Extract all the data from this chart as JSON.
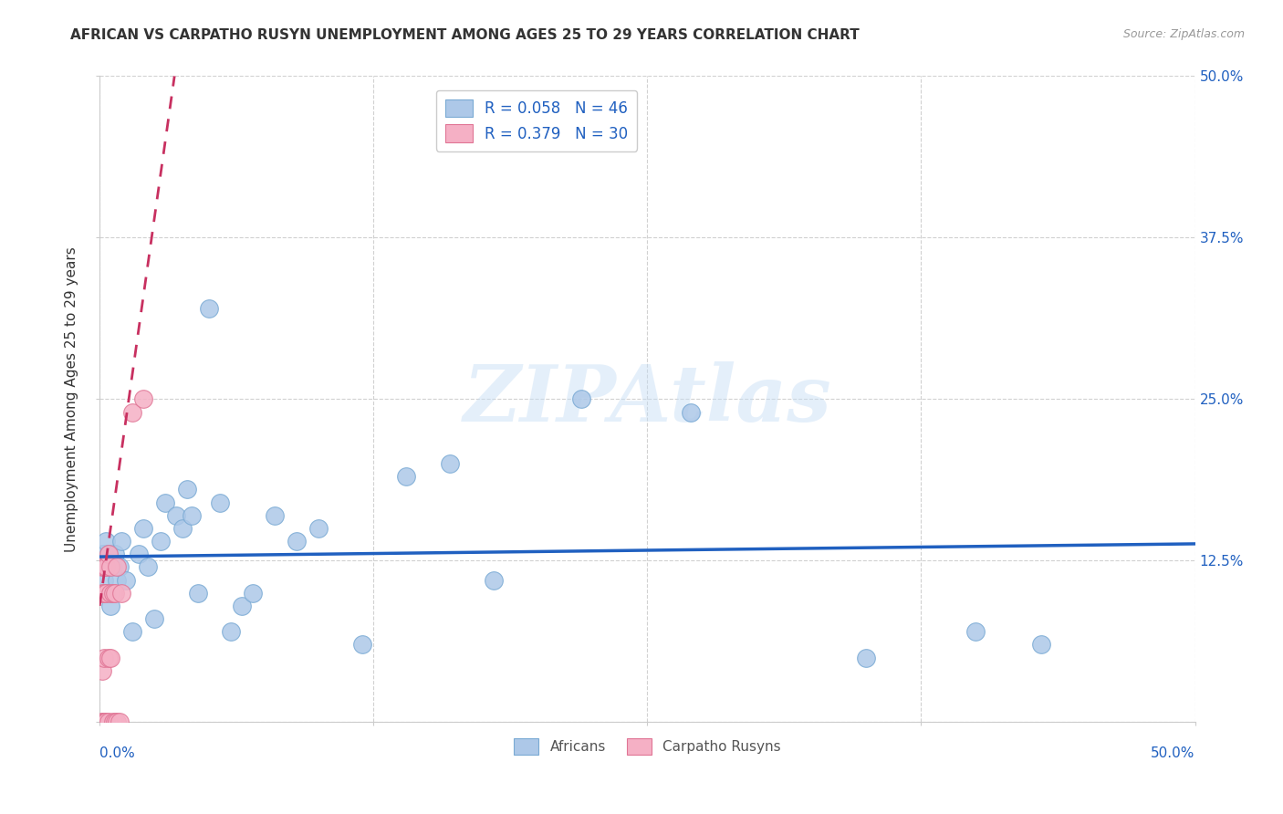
{
  "title": "AFRICAN VS CARPATHO RUSYN UNEMPLOYMENT AMONG AGES 25 TO 29 YEARS CORRELATION CHART",
  "source": "Source: ZipAtlas.com",
  "ylabel": "Unemployment Among Ages 25 to 29 years",
  "xlim": [
    0,
    0.5
  ],
  "ylim": [
    0,
    0.5
  ],
  "xticks": [
    0.0,
    0.125,
    0.25,
    0.375,
    0.5
  ],
  "yticks": [
    0.0,
    0.125,
    0.25,
    0.375,
    0.5
  ],
  "right_yticklabels": [
    "",
    "12.5%",
    "25.0%",
    "37.5%",
    "50.0%"
  ],
  "bottom_xticklabels_blue": [
    "0.0%",
    "",
    "",
    "",
    "50.0%"
  ],
  "african_color": "#adc8e8",
  "african_edge": "#7aaad4",
  "carpatho_color": "#f5b0c5",
  "carpatho_edge": "#e07595",
  "trendline_african_color": "#2060c0",
  "trendline_carpatho_color": "#c83060",
  "R_african": 0.058,
  "N_african": 46,
  "R_carpatho": 0.379,
  "N_carpatho": 30,
  "watermark": "ZIPAtlas",
  "legend_entries": [
    "Africans",
    "Carpatho Rusyns"
  ],
  "african_x": [
    0.001,
    0.002,
    0.002,
    0.003,
    0.003,
    0.003,
    0.004,
    0.004,
    0.005,
    0.005,
    0.006,
    0.006,
    0.007,
    0.008,
    0.009,
    0.01,
    0.012,
    0.015,
    0.018,
    0.02,
    0.022,
    0.025,
    0.028,
    0.03,
    0.035,
    0.038,
    0.04,
    0.042,
    0.045,
    0.05,
    0.055,
    0.06,
    0.065,
    0.07,
    0.08,
    0.09,
    0.1,
    0.12,
    0.14,
    0.16,
    0.18,
    0.22,
    0.27,
    0.35,
    0.4,
    0.43
  ],
  "african_y": [
    0.13,
    0.11,
    0.13,
    0.1,
    0.12,
    0.14,
    0.1,
    0.13,
    0.09,
    0.12,
    0.1,
    0.12,
    0.13,
    0.11,
    0.12,
    0.14,
    0.11,
    0.07,
    0.13,
    0.15,
    0.12,
    0.08,
    0.14,
    0.17,
    0.16,
    0.15,
    0.18,
    0.16,
    0.1,
    0.32,
    0.17,
    0.07,
    0.09,
    0.1,
    0.16,
    0.14,
    0.15,
    0.06,
    0.19,
    0.2,
    0.11,
    0.25,
    0.24,
    0.05,
    0.07,
    0.06
  ],
  "carpatho_x": [
    0.001,
    0.001,
    0.001,
    0.001,
    0.001,
    0.002,
    0.002,
    0.002,
    0.002,
    0.002,
    0.003,
    0.003,
    0.003,
    0.003,
    0.004,
    0.004,
    0.004,
    0.005,
    0.005,
    0.005,
    0.006,
    0.006,
    0.007,
    0.007,
    0.008,
    0.008,
    0.009,
    0.01,
    0.015,
    0.02
  ],
  "carpatho_y": [
    0.0,
    0.0,
    0.04,
    0.1,
    0.12,
    0.0,
    0.0,
    0.05,
    0.1,
    0.12,
    0.0,
    0.0,
    0.1,
    0.12,
    0.0,
    0.05,
    0.13,
    0.05,
    0.1,
    0.12,
    0.0,
    0.1,
    0.0,
    0.1,
    0.0,
    0.12,
    0.0,
    0.1,
    0.24,
    0.25
  ],
  "african_trendline_y_start": 0.128,
  "african_trendline_y_end": 0.138,
  "carpatho_trendline_slope": 12.0,
  "carpatho_trendline_intercept": 0.09
}
